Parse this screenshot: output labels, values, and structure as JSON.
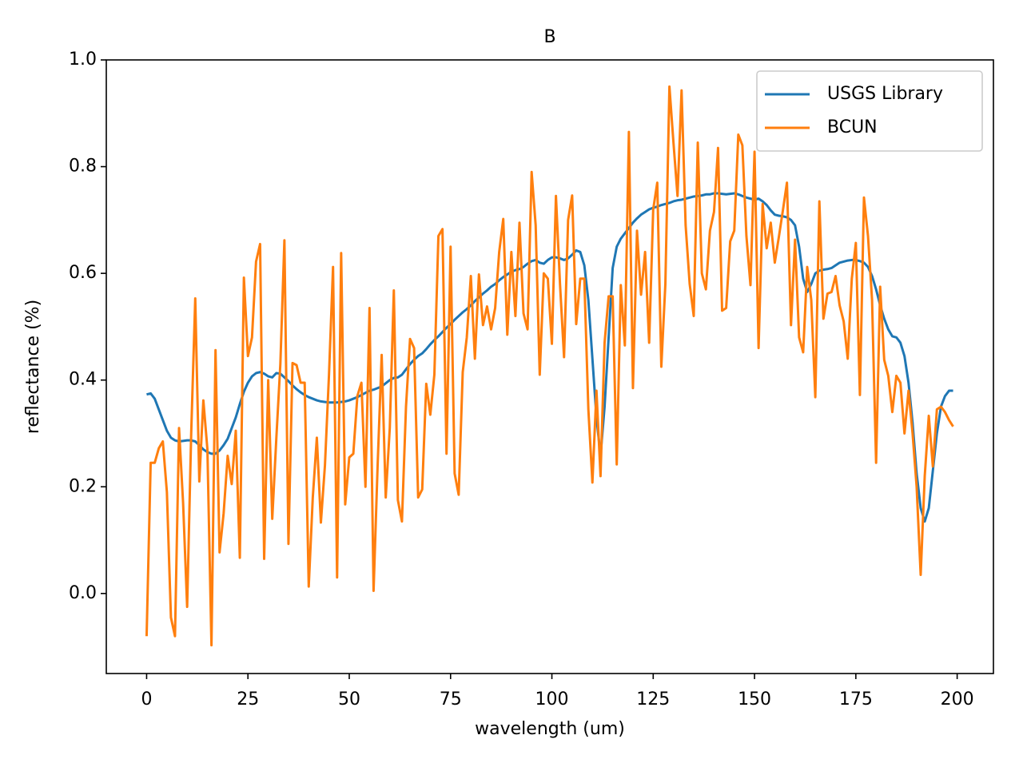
{
  "chart_data": {
    "type": "line",
    "title": "B",
    "xlabel": "wavelength (um)",
    "ylabel": "reflectance (%)",
    "x": [
      0,
      1,
      2,
      3,
      4,
      5,
      6,
      7,
      8,
      9,
      10,
      11,
      12,
      13,
      14,
      15,
      16,
      17,
      18,
      19,
      20,
      21,
      22,
      23,
      24,
      25,
      26,
      27,
      28,
      29,
      30,
      31,
      32,
      33,
      34,
      35,
      36,
      37,
      38,
      39,
      40,
      41,
      42,
      43,
      44,
      45,
      46,
      47,
      48,
      49,
      50,
      51,
      52,
      53,
      54,
      55,
      56,
      57,
      58,
      59,
      60,
      61,
      62,
      63,
      64,
      65,
      66,
      67,
      68,
      69,
      70,
      71,
      72,
      73,
      74,
      75,
      76,
      77,
      78,
      79,
      80,
      81,
      82,
      83,
      84,
      85,
      86,
      87,
      88,
      89,
      90,
      91,
      92,
      93,
      94,
      95,
      96,
      97,
      98,
      99,
      100,
      101,
      102,
      103,
      104,
      105,
      106,
      107,
      108,
      109,
      110,
      111,
      112,
      113,
      114,
      115,
      116,
      117,
      118,
      119,
      120,
      121,
      122,
      123,
      124,
      125,
      126,
      127,
      128,
      129,
      130,
      131,
      132,
      133,
      134,
      135,
      136,
      137,
      138,
      139,
      140,
      141,
      142,
      143,
      144,
      145,
      146,
      147,
      148,
      149,
      150,
      151,
      152,
      153,
      154,
      155,
      156,
      157,
      158,
      159,
      160,
      161,
      162,
      163,
      164,
      165,
      166,
      167,
      168,
      169,
      170,
      171,
      172,
      173,
      174,
      175,
      176,
      177,
      178,
      179,
      180,
      181,
      182,
      183,
      184,
      185,
      186,
      187,
      188,
      189,
      190,
      191,
      192,
      193,
      194,
      195,
      196,
      197,
      198,
      199
    ],
    "series": [
      {
        "name": "USGS Library",
        "color": "#1f77b4",
        "values": [
          0.373,
          0.375,
          0.365,
          0.345,
          0.325,
          0.305,
          0.292,
          0.287,
          0.285,
          0.286,
          0.287,
          0.287,
          0.285,
          0.278,
          0.27,
          0.265,
          0.262,
          0.262,
          0.268,
          0.278,
          0.29,
          0.31,
          0.33,
          0.355,
          0.378,
          0.395,
          0.407,
          0.413,
          0.415,
          0.412,
          0.407,
          0.405,
          0.413,
          0.412,
          0.405,
          0.398,
          0.39,
          0.383,
          0.377,
          0.372,
          0.368,
          0.365,
          0.362,
          0.36,
          0.359,
          0.358,
          0.358,
          0.358,
          0.359,
          0.36,
          0.362,
          0.365,
          0.368,
          0.372,
          0.376,
          0.38,
          0.382,
          0.385,
          0.388,
          0.394,
          0.4,
          0.404,
          0.405,
          0.41,
          0.42,
          0.43,
          0.438,
          0.445,
          0.45,
          0.458,
          0.467,
          0.475,
          0.482,
          0.49,
          0.498,
          0.505,
          0.513,
          0.52,
          0.527,
          0.533,
          0.54,
          0.548,
          0.555,
          0.562,
          0.568,
          0.575,
          0.58,
          0.587,
          0.593,
          0.598,
          0.603,
          0.606,
          0.608,
          0.612,
          0.618,
          0.623,
          0.625,
          0.62,
          0.618,
          0.625,
          0.63,
          0.63,
          0.628,
          0.625,
          0.628,
          0.635,
          0.643,
          0.64,
          0.615,
          0.55,
          0.44,
          0.33,
          0.258,
          0.35,
          0.48,
          0.61,
          0.65,
          0.665,
          0.675,
          0.685,
          0.695,
          0.703,
          0.71,
          0.715,
          0.72,
          0.723,
          0.725,
          0.728,
          0.73,
          0.732,
          0.735,
          0.737,
          0.738,
          0.74,
          0.742,
          0.744,
          0.745,
          0.746,
          0.748,
          0.748,
          0.75,
          0.75,
          0.749,
          0.748,
          0.749,
          0.75,
          0.748,
          0.745,
          0.742,
          0.74,
          0.738,
          0.74,
          0.735,
          0.728,
          0.718,
          0.71,
          0.708,
          0.707,
          0.705,
          0.7,
          0.69,
          0.65,
          0.59,
          0.565,
          0.58,
          0.6,
          0.605,
          0.607,
          0.608,
          0.61,
          0.615,
          0.62,
          0.622,
          0.624,
          0.625,
          0.625,
          0.623,
          0.62,
          0.612,
          0.595,
          0.57,
          0.54,
          0.515,
          0.495,
          0.482,
          0.48,
          0.47,
          0.445,
          0.395,
          0.32,
          0.225,
          0.16,
          0.135,
          0.16,
          0.23,
          0.3,
          0.35,
          0.37,
          0.38,
          0.38
        ]
      },
      {
        "name": "BCUN",
        "color": "#ff7f0e",
        "values": [
          -0.08,
          0.245,
          0.245,
          0.272,
          0.285,
          0.19,
          -0.045,
          -0.08,
          0.31,
          0.17,
          -0.025,
          0.3,
          0.553,
          0.21,
          0.362,
          0.27,
          -0.097,
          0.456,
          0.077,
          0.15,
          0.258,
          0.205,
          0.305,
          0.067,
          0.592,
          0.445,
          0.48,
          0.622,
          0.655,
          0.065,
          0.4,
          0.14,
          0.29,
          0.43,
          0.662,
          0.093,
          0.432,
          0.428,
          0.395,
          0.395,
          0.013,
          0.18,
          0.292,
          0.133,
          0.24,
          0.41,
          0.612,
          0.03,
          0.638,
          0.167,
          0.255,
          0.262,
          0.37,
          0.395,
          0.2,
          0.535,
          0.005,
          0.24,
          0.447,
          0.18,
          0.31,
          0.568,
          0.175,
          0.135,
          0.35,
          0.477,
          0.46,
          0.18,
          0.195,
          0.393,
          0.335,
          0.41,
          0.67,
          0.683,
          0.262,
          0.65,
          0.225,
          0.185,
          0.415,
          0.48,
          0.595,
          0.44,
          0.598,
          0.503,
          0.538,
          0.495,
          0.535,
          0.64,
          0.702,
          0.485,
          0.64,
          0.52,
          0.695,
          0.525,
          0.495,
          0.79,
          0.69,
          0.41,
          0.6,
          0.59,
          0.468,
          0.745,
          0.58,
          0.443,
          0.7,
          0.746,
          0.505,
          0.59,
          0.59,
          0.345,
          0.208,
          0.38,
          0.22,
          0.47,
          0.557,
          0.557,
          0.242,
          0.578,
          0.465,
          0.865,
          0.385,
          0.68,
          0.56,
          0.64,
          0.47,
          0.72,
          0.77,
          0.425,
          0.58,
          0.95,
          0.845,
          0.745,
          0.943,
          0.69,
          0.58,
          0.52,
          0.845,
          0.6,
          0.57,
          0.68,
          0.715,
          0.835,
          0.53,
          0.535,
          0.66,
          0.68,
          0.86,
          0.84,
          0.67,
          0.578,
          0.828,
          0.46,
          0.73,
          0.647,
          0.695,
          0.62,
          0.668,
          0.718,
          0.77,
          0.503,
          0.663,
          0.48,
          0.452,
          0.612,
          0.55,
          0.368,
          0.735,
          0.515,
          0.562,
          0.565,
          0.595,
          0.54,
          0.51,
          0.44,
          0.59,
          0.657,
          0.372,
          0.742,
          0.67,
          0.55,
          0.245,
          0.575,
          0.438,
          0.408,
          0.34,
          0.408,
          0.395,
          0.3,
          0.38,
          0.3,
          0.2,
          0.035,
          0.22,
          0.333,
          0.238,
          0.345,
          0.35,
          0.34,
          0.325,
          0.313
        ]
      }
    ],
    "xlim": [
      -9.95,
      208.95
    ],
    "xticks": [
      0,
      25,
      50,
      75,
      100,
      125,
      150,
      175,
      200
    ],
    "ylim": [
      -0.15,
      1.0
    ],
    "yticks": [
      {
        "value": 0,
        "label": "0.0"
      },
      0.2,
      0.4,
      0.6,
      0.8,
      {
        "value": 1,
        "label": "1.0"
      }
    ],
    "grid": false,
    "legend": "upper right"
  }
}
